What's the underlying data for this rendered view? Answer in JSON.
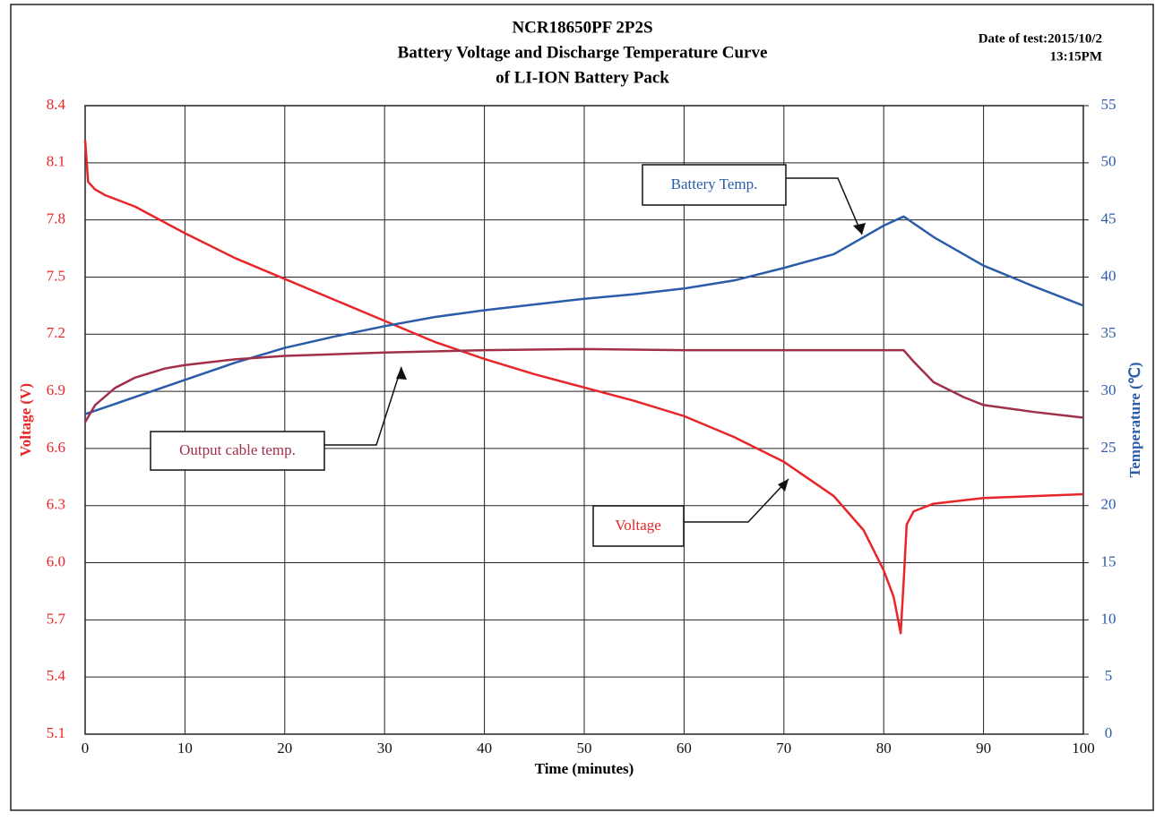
{
  "chart_data": {
    "type": "line",
    "title": [
      "NCR18650PF 2P2S",
      "Battery Voltage and Discharge Temperature Curve",
      "of LI-ION Battery Pack"
    ],
    "date_note": [
      "Date of test:2015/10/2",
      "13:15PM"
    ],
    "x_label": "Time (minutes)",
    "y_label": "Voltage (V)",
    "y2_label": "Temperature (℃)",
    "annotations": [
      "Battery Temp.",
      "Output cable temp.",
      "Voltage"
    ],
    "xlim": [
      0,
      100
    ],
    "xticks": [
      0,
      10,
      20,
      30,
      40,
      50,
      60,
      70,
      80,
      90,
      100
    ],
    "ylim": [
      5.1,
      8.4
    ],
    "yticks": [
      5.1,
      5.4,
      5.7,
      {
        "value": 6,
        "label": "6.0"
      },
      6.3,
      6.6,
      6.9,
      7.2,
      7.5,
      7.8,
      8.1,
      8.4
    ],
    "y2lim": [
      0,
      55
    ],
    "y2ticks": [
      0,
      5,
      10,
      15,
      20,
      25,
      30,
      35,
      40,
      45,
      50,
      55
    ],
    "grid": true,
    "series": [
      {
        "name": "Voltage",
        "color": "#e8262a",
        "axis": "y",
        "x": [
          0,
          0.3,
          1,
          2,
          5,
          10,
          15,
          20,
          25,
          30,
          35,
          40,
          45,
          50,
          55,
          60,
          65,
          70,
          75,
          78,
          80,
          81,
          81.7,
          82,
          82.3,
          83,
          85,
          90,
          95,
          100
        ],
        "values": [
          8.22,
          8.0,
          7.96,
          7.93,
          7.87,
          7.73,
          7.6,
          7.49,
          7.38,
          7.27,
          7.16,
          7.07,
          6.99,
          6.92,
          6.85,
          6.77,
          6.66,
          6.53,
          6.35,
          6.17,
          5.96,
          5.82,
          5.63,
          5.9,
          6.2,
          6.27,
          6.31,
          6.34,
          6.35,
          6.36
        ]
      },
      {
        "name": "Battery Temp.",
        "color": "#2a5caa",
        "axis": "y2",
        "x": [
          0,
          5,
          10,
          15,
          20,
          25,
          30,
          35,
          40,
          45,
          50,
          55,
          60,
          65,
          70,
          75,
          78,
          80,
          82,
          85,
          90,
          95,
          100
        ],
        "values": [
          28,
          29.5,
          31,
          32.5,
          33.8,
          34.8,
          35.7,
          36.5,
          37.1,
          37.6,
          38.1,
          38.5,
          39,
          39.7,
          40.8,
          42,
          43.5,
          44.5,
          45.3,
          43.5,
          41,
          39.2,
          37.5
        ]
      },
      {
        "name": "Output cable temp.",
        "color": "#a0304a",
        "axis": "y2",
        "x": [
          0,
          1,
          3,
          5,
          8,
          10,
          15,
          20,
          30,
          40,
          50,
          60,
          70,
          80,
          82,
          83,
          85,
          88,
          90,
          95,
          100
        ],
        "values": [
          27.3,
          28.8,
          30.3,
          31.2,
          32,
          32.3,
          32.8,
          33.1,
          33.4,
          33.6,
          33.7,
          33.6,
          33.6,
          33.6,
          33.6,
          32.6,
          30.8,
          29.5,
          28.8,
          28.2,
          27.7
        ]
      }
    ]
  }
}
